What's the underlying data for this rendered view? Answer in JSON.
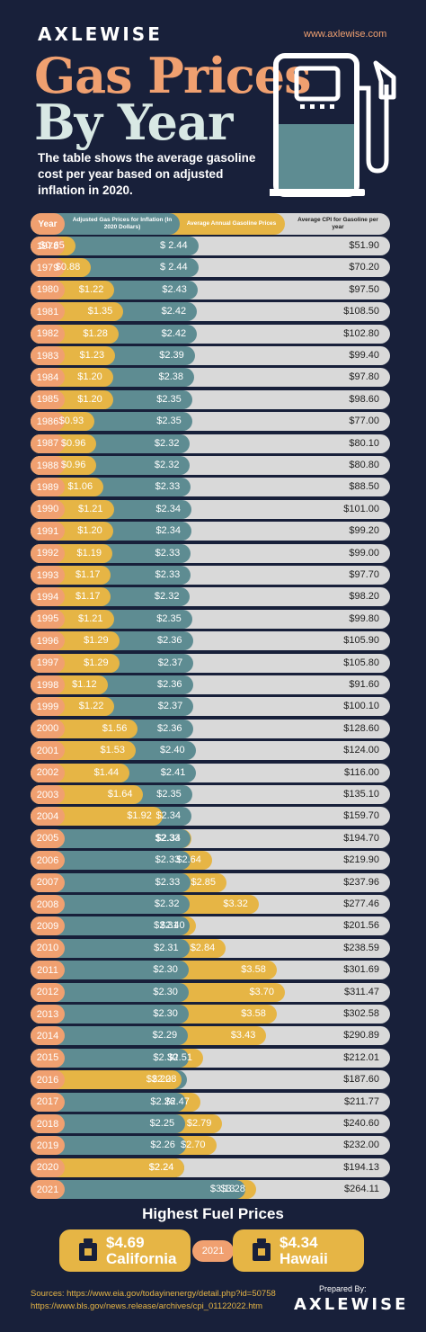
{
  "brand": "AXLEWISE",
  "url": "www.axlewise.com",
  "title_line1": "Gas Prices",
  "title_line2": "By Year",
  "subtitle": "The table shows the average gasoline cost per year based on adjusted inflation in 2020.",
  "header": {
    "year": "Year",
    "adjusted": "Adjusted Gas Prices for Inflation (In 2020 Dollars)",
    "average": "Average Annual Gasoline Prices",
    "cpi": "Average CPI for Gasoline per year"
  },
  "colors": {
    "background": "#18203a",
    "year_orange": "#f0a070",
    "teal": "#5e8c92",
    "gold": "#e6b545",
    "cpi_gray": "#d9d9d9"
  },
  "chart_data": {
    "type": "table",
    "columns": [
      "Year",
      "Adjusted Gas Prices for Inflation (In 2020 Dollars)",
      "Average Annual Gasoline Prices",
      "Average CPI for Gasoline per year"
    ],
    "rows": [
      {
        "year": "1978",
        "adj": 0.65,
        "avg": 2.44,
        "cpi": 51.9,
        "adj_label": "$0.65",
        "avg_label": "$ 2.44",
        "cpi_label": "$51.90"
      },
      {
        "year": "1979",
        "adj": 0.88,
        "avg": 2.44,
        "cpi": 70.2,
        "adj_label": "$0.88",
        "avg_label": "$ 2.44",
        "cpi_label": "$70.20"
      },
      {
        "year": "1980",
        "adj": 1.22,
        "avg": 2.43,
        "cpi": 97.5,
        "adj_label": "$1.22",
        "avg_label": "$2.43",
        "cpi_label": "$97.50"
      },
      {
        "year": "1981",
        "adj": 1.35,
        "avg": 2.42,
        "cpi": 108.5,
        "adj_label": "$1.35",
        "avg_label": "$2.42",
        "cpi_label": "$108.50"
      },
      {
        "year": "1982",
        "adj": 1.28,
        "avg": 2.42,
        "cpi": 102.8,
        "adj_label": "$1.28",
        "avg_label": "$2.42",
        "cpi_label": "$102.80"
      },
      {
        "year": "1983",
        "adj": 1.23,
        "avg": 2.39,
        "cpi": 99.4,
        "adj_label": "$1.23",
        "avg_label": "$2.39",
        "cpi_label": "$99.40"
      },
      {
        "year": "1984",
        "adj": 1.2,
        "avg": 2.38,
        "cpi": 97.8,
        "adj_label": "$1.20",
        "avg_label": "$2.38",
        "cpi_label": "$97.80"
      },
      {
        "year": "1985",
        "adj": 1.2,
        "avg": 2.35,
        "cpi": 98.6,
        "adj_label": "$1.20",
        "avg_label": "$2.35",
        "cpi_label": "$98.60"
      },
      {
        "year": "1986",
        "adj": 0.93,
        "avg": 2.35,
        "cpi": 77.0,
        "adj_label": "$0.93",
        "avg_label": "$2.35",
        "cpi_label": "$77.00"
      },
      {
        "year": "1987",
        "adj": 0.96,
        "avg": 2.32,
        "cpi": 80.1,
        "adj_label": "$0.96",
        "avg_label": "$2.32",
        "cpi_label": "$80.10"
      },
      {
        "year": "1988",
        "adj": 0.96,
        "avg": 2.32,
        "cpi": 80.8,
        "adj_label": "$0.96",
        "avg_label": "$2.32",
        "cpi_label": "$80.80"
      },
      {
        "year": "1989",
        "adj": 1.06,
        "avg": 2.33,
        "cpi": 88.5,
        "adj_label": "$1.06",
        "avg_label": "$2.33",
        "cpi_label": "$88.50"
      },
      {
        "year": "1990",
        "adj": 1.21,
        "avg": 2.34,
        "cpi": 101.0,
        "adj_label": "$1.21",
        "avg_label": "$2.34",
        "cpi_label": "$101.00"
      },
      {
        "year": "1991",
        "adj": 1.2,
        "avg": 2.34,
        "cpi": 99.2,
        "adj_label": "$1.20",
        "avg_label": "$2.34",
        "cpi_label": "$99.20"
      },
      {
        "year": "1992",
        "adj": 1.19,
        "avg": 2.33,
        "cpi": 99.0,
        "adj_label": "$1.19",
        "avg_label": "$2.33",
        "cpi_label": "$99.00"
      },
      {
        "year": "1993",
        "adj": 1.17,
        "avg": 2.33,
        "cpi": 97.7,
        "adj_label": "$1.17",
        "avg_label": "$2.33",
        "cpi_label": "$97.70"
      },
      {
        "year": "1994",
        "adj": 1.17,
        "avg": 2.32,
        "cpi": 98.2,
        "adj_label": "$1.17",
        "avg_label": "$2.32",
        "cpi_label": "$98.20"
      },
      {
        "year": "1995",
        "adj": 1.21,
        "avg": 2.35,
        "cpi": 99.8,
        "adj_label": "$1.21",
        "avg_label": "$2.35",
        "cpi_label": "$99.80"
      },
      {
        "year": "1996",
        "adj": 1.29,
        "avg": 2.36,
        "cpi": 105.9,
        "adj_label": "$1.29",
        "avg_label": "$2.36",
        "cpi_label": "$105.90"
      },
      {
        "year": "1997",
        "adj": 1.29,
        "avg": 2.37,
        "cpi": 105.8,
        "adj_label": "$1.29",
        "avg_label": "$2.37",
        "cpi_label": "$105.80"
      },
      {
        "year": "1998",
        "adj": 1.12,
        "avg": 2.36,
        "cpi": 91.6,
        "adj_label": "$1.12",
        "avg_label": "$2.36",
        "cpi_label": "$91.60"
      },
      {
        "year": "1999",
        "adj": 1.22,
        "avg": 2.37,
        "cpi": 100.1,
        "adj_label": "$1.22",
        "avg_label": "$2.37",
        "cpi_label": "$100.10"
      },
      {
        "year": "2000",
        "adj": 1.56,
        "avg": 2.36,
        "cpi": 128.6,
        "adj_label": "$1.56",
        "avg_label": "$2.36",
        "cpi_label": "$128.60"
      },
      {
        "year": "2001",
        "adj": 1.53,
        "avg": 2.4,
        "cpi": 124.0,
        "adj_label": "$1.53",
        "avg_label": "$2.40",
        "cpi_label": "$124.00"
      },
      {
        "year": "2002",
        "adj": 1.44,
        "avg": 2.41,
        "cpi": 116.0,
        "adj_label": "$1.44",
        "avg_label": "$2.41",
        "cpi_label": "$116.00"
      },
      {
        "year": "2003",
        "adj": 1.64,
        "avg": 2.35,
        "cpi": 135.1,
        "adj_label": "$1.64",
        "avg_label": "$2.35",
        "cpi_label": "$135.10"
      },
      {
        "year": "2004",
        "adj": 1.92,
        "avg": 2.34,
        "cpi": 159.7,
        "adj_label": "$1.92",
        "avg_label": "$2.34",
        "cpi_label": "$159.70"
      },
      {
        "year": "2005",
        "adj": 2.34,
        "avg": 2.33,
        "cpi": 194.7,
        "adj_label": "$2.34",
        "avg_label": "$2.33",
        "cpi_label": "$194.70"
      },
      {
        "year": "2006",
        "adj": 2.64,
        "avg": 2.33,
        "cpi": 219.9,
        "adj_label": "$2.64",
        "avg_label": "$2.33",
        "cpi_label": "$219.90"
      },
      {
        "year": "2007",
        "adj": 2.85,
        "avg": 2.33,
        "cpi": 237.96,
        "adj_label": "$2.85",
        "avg_label": "$2.33",
        "cpi_label": "$237.96"
      },
      {
        "year": "2008",
        "adj": 3.32,
        "avg": 2.32,
        "cpi": 277.46,
        "adj_label": "$3.32",
        "avg_label": "$2.32",
        "cpi_label": "$277.46"
      },
      {
        "year": "2009",
        "adj": 2.4,
        "avg": 2.31,
        "cpi": 201.56,
        "adj_label": "$2.40",
        "avg_label": "$2.31",
        "cpi_label": "$201.56"
      },
      {
        "year": "2010",
        "adj": 2.84,
        "avg": 2.31,
        "cpi": 238.59,
        "adj_label": "$2.84",
        "avg_label": "$2.31",
        "cpi_label": "$238.59"
      },
      {
        "year": "2011",
        "adj": 3.58,
        "avg": 2.3,
        "cpi": 301.69,
        "adj_label": "$3.58",
        "avg_label": "$2.30",
        "cpi_label": "$301.69"
      },
      {
        "year": "2012",
        "adj": 3.7,
        "avg": 2.3,
        "cpi": 311.47,
        "adj_label": "$3.70",
        "avg_label": "$2.30",
        "cpi_label": "$311.47"
      },
      {
        "year": "2013",
        "adj": 3.58,
        "avg": 2.3,
        "cpi": 302.58,
        "adj_label": "$3.58",
        "avg_label": "$2.30",
        "cpi_label": "$302.58"
      },
      {
        "year": "2014",
        "adj": 3.43,
        "avg": 2.29,
        "cpi": 290.89,
        "adj_label": "$3.43",
        "avg_label": "$2.29",
        "cpi_label": "$290.89"
      },
      {
        "year": "2015",
        "adj": 2.51,
        "avg": 2.3,
        "cpi": 212.01,
        "adj_label": "$2.51",
        "avg_label": "$2.30",
        "cpi_label": "$212.01"
      },
      {
        "year": "2016",
        "adj": 2.2,
        "avg": 2.28,
        "cpi": 187.6,
        "adj_label": "$2.20",
        "avg_label": "$2.28",
        "cpi_label": "$187.60"
      },
      {
        "year": "2017",
        "adj": 2.47,
        "avg": 2.26,
        "cpi": 211.77,
        "adj_label": "$2.47",
        "avg_label": "$2.26",
        "cpi_label": "$211.77"
      },
      {
        "year": "2018",
        "adj": 2.79,
        "avg": 2.25,
        "cpi": 240.6,
        "adj_label": "$2.79",
        "avg_label": "$2.25",
        "cpi_label": "$240.60"
      },
      {
        "year": "2019",
        "adj": 2.7,
        "avg": 2.26,
        "cpi": 232.0,
        "adj_label": "$2.70",
        "avg_label": "$2.26",
        "cpi_label": "$232.00"
      },
      {
        "year": "2020",
        "adj": 2.24,
        "avg": 2.24,
        "cpi": 194.13,
        "adj_label": "$2.24",
        "avg_label": "$2.24",
        "cpi_label": "$194.13"
      },
      {
        "year": "2021",
        "adj": 3.28,
        "avg": 3.13,
        "cpi": 264.11,
        "adj_label": "$3.28",
        "avg_label": "$3.13",
        "cpi_label": "$264.11"
      }
    ]
  },
  "highest": {
    "title": "Highest Fuel Prices",
    "year": "2021",
    "left": {
      "price": "$4.69",
      "state": "California"
    },
    "right": {
      "price": "$4.34",
      "state": "Hawaii"
    }
  },
  "sources": {
    "line1": "Sources: https://www.eia.gov/todayinenergy/detail.php?id=50758",
    "line2": "https://www.bls.gov/news.release/archives/cpi_01122022.htm"
  },
  "prepared_by": "Prepared By:",
  "icons": [
    "gas-pump-icon",
    "fuel-can-icon"
  ]
}
